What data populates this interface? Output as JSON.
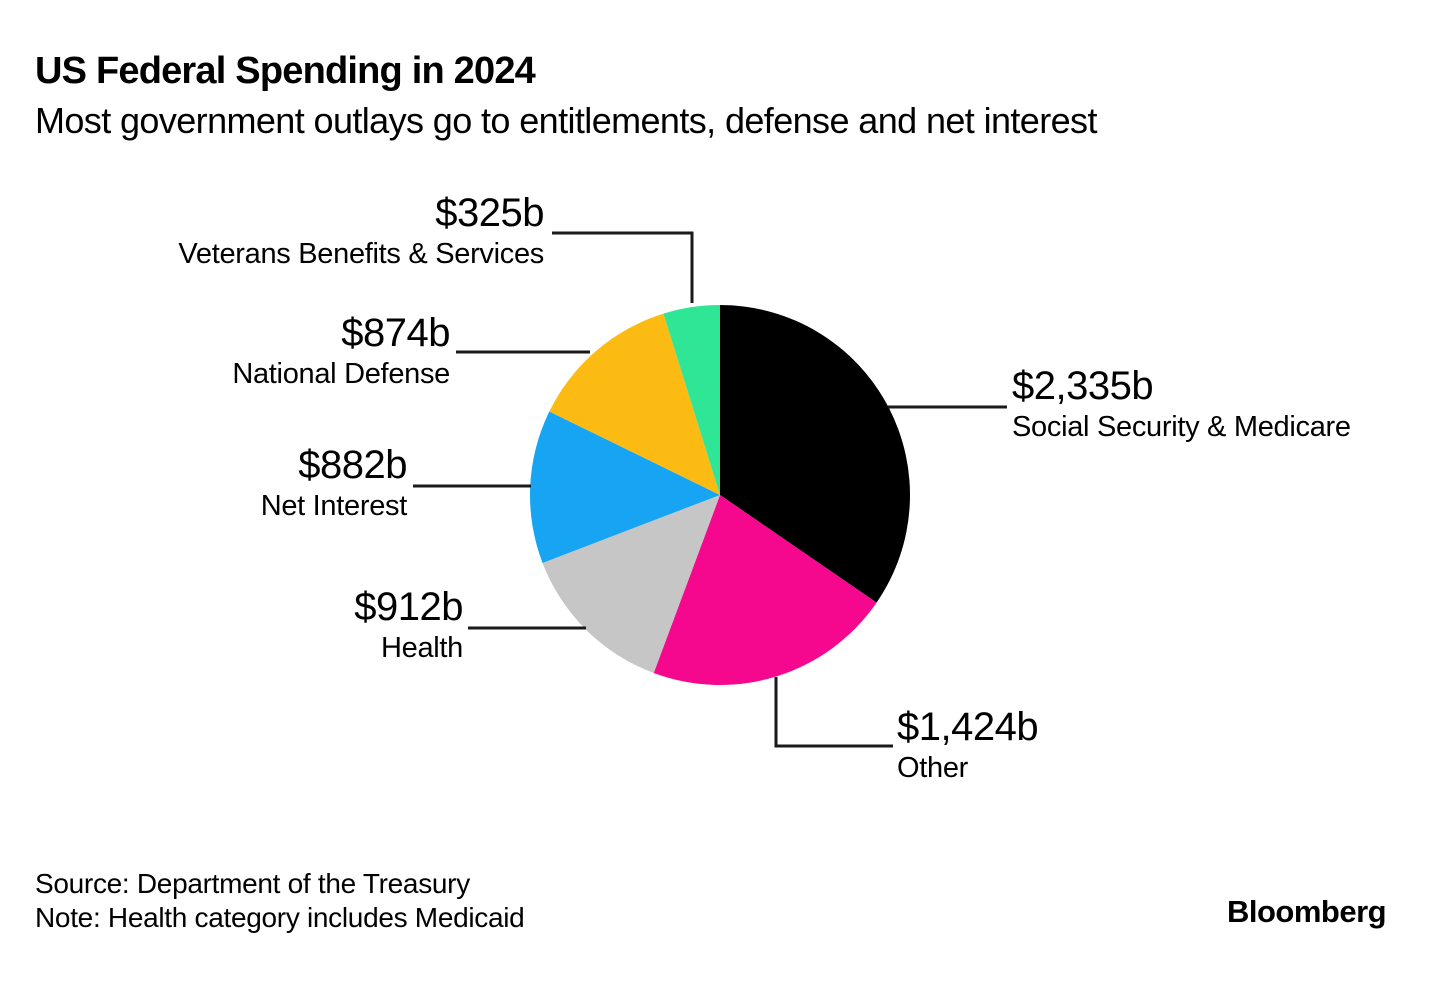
{
  "header": {
    "title": "US Federal Spending in 2024",
    "subtitle": "Most government outlays go to entitlements, defense and net interest"
  },
  "footer": {
    "source": "Source: Department of the Treasury",
    "note": "Note: Health category includes Medicaid",
    "brand": "Bloomberg"
  },
  "chart_data": {
    "type": "pie",
    "title": "US Federal Spending in 2024",
    "unit": "billions of US dollars",
    "total_value": 6752,
    "start_angle_deg": 0,
    "direction": "clockwise",
    "legend_position": "callouts",
    "slices": [
      {
        "label": "Social Security & Medicare",
        "value": 2335,
        "value_label": "$2,335b",
        "color": "#000000"
      },
      {
        "label": "Other",
        "value": 1424,
        "value_label": "$1,424b",
        "color": "#F5078E"
      },
      {
        "label": "Health",
        "value": 912,
        "value_label": "$912b",
        "color": "#C6C6C6"
      },
      {
        "label": "Net Interest",
        "value": 882,
        "value_label": "$882b",
        "color": "#16A4F3"
      },
      {
        "label": "National Defense",
        "value": 874,
        "value_label": "$874b",
        "color": "#FBBB13"
      },
      {
        "label": "Veterans Benefits & Services",
        "value": 325,
        "value_label": "$325b",
        "color": "#2FE596"
      }
    ],
    "leader_line_color": "#1a1a1a"
  }
}
